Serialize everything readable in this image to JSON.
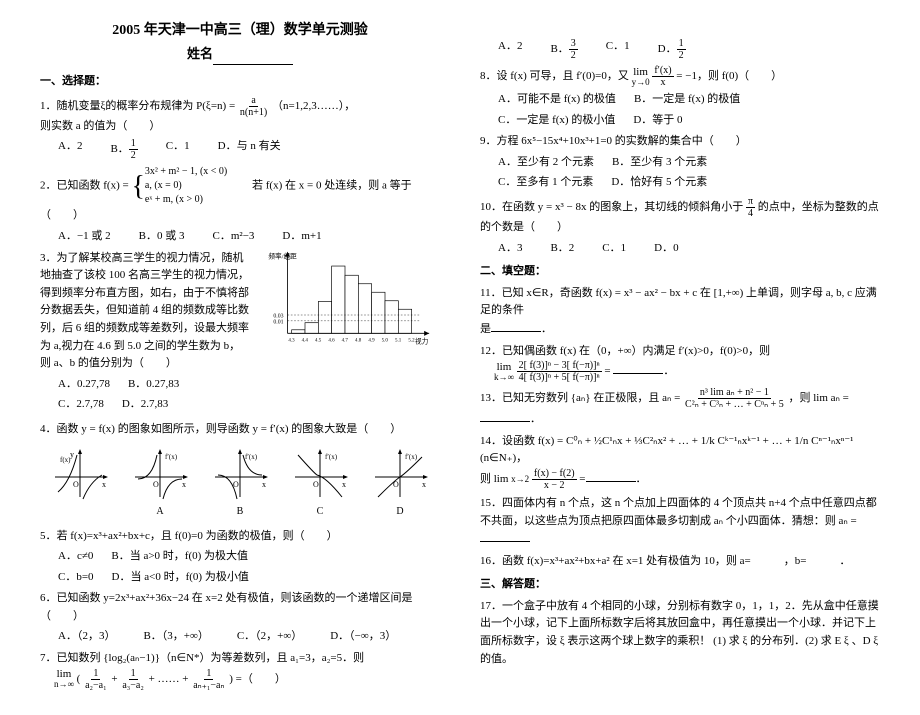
{
  "title": "2005 年天津一中高三（理）数学单元测验",
  "subtitle_prefix": "姓名",
  "section1": "一、选择题：",
  "section2": "二、填空题：",
  "section3": "三、解答题：",
  "q1": {
    "text": "1．随机变量ξ的概率分布规律为 P(ξ=n) = ",
    "formula_num": "a",
    "formula_den": "n(n+1)",
    "tail": "（n=1,2,3……），",
    "line2": "则实数 a 的值为（　　）",
    "opts": [
      "A．2",
      "B．",
      "C．1",
      "D．与 n 有关"
    ],
    "optB_num": "1",
    "optB_den": "2"
  },
  "q2": {
    "text": "2．已知函数 f(x) = ",
    "pw1": "3x² + m² − 1, (x < 0)",
    "pw2": "a, (x = 0)",
    "pw3": "eˣ + m, (x > 0)",
    "tail": "　　若 f(x) 在 x = 0 处连续，则 a 等于（　　）",
    "opts": [
      "A．−1 或 2",
      "B．0 或 3",
      "C．m²−3",
      "D．m+1"
    ]
  },
  "q3": {
    "text": "3．为了解某校高三学生的视力情况，随机地抽查了该校 100 名高三学生的视力情况，得到频率分布直方图，如右，由于不慎将部分数据丢失，但知道前 4 组的频数成等比数列，后 6 组的频数成等差数列，设最大频率为 a,视力在 4.6 到 5.0 之间的学生数为 b，则 a、b 的值分别为（　　）",
    "opts": [
      "A．0.27,78",
      "B．0.27,83",
      "C．2.7,78",
      "D．2.7,83"
    ],
    "chart": {
      "xlabels": [
        "4.3",
        "4.4",
        "4.5",
        "4.6",
        "4.7",
        "4.8",
        "4.9",
        "5.0",
        "5.1",
        "5.2"
      ],
      "ylabel": "频率/组距",
      "xlabel": "视力",
      "yticks": [
        "0.01",
        "0.03"
      ],
      "bars": [
        0.05,
        0.15,
        0.45,
        0.95,
        0.82,
        0.7,
        0.58,
        0.46,
        0.34
      ],
      "bar_color": "#ffffff",
      "border_color": "#000000",
      "dash_color": "#000000"
    }
  },
  "q4": {
    "text": "4．函数 y = f(x) 的图象如图所示，则导函数 y = f′(x) 的图象大致是（　　）",
    "labels": [
      "A",
      "B",
      "C",
      "D"
    ]
  },
  "q5": {
    "text": "5．若 f(x)=x³+ax²+bx+c，且 f(0)=0 为函数的极值，则（　　）",
    "opts": [
      "A．c≠0",
      "B．当 a>0 时，f(0) 为极大值",
      "C．b=0",
      "D．当 a<0 时，f(0) 为极小值"
    ]
  },
  "q6": {
    "text": "6．已知函数 y=2x³+ax²+36x−24 在 x=2 处有极值，则该函数的一个递增区间是（　　）",
    "opts": [
      "A．（2，3）",
      "B．（3，+∞）",
      "C．（2，+∞）",
      "D．（−∞，3）"
    ]
  },
  "q7": {
    "text": "7．已知数列 {log₂(aₙ−1)}（n∈N*）为等差数列，且 a₁=3，a₂=5．则",
    "lim_expr_num": "1",
    "lim_expr": "a₂−a₁　a₃−a₂　　　aₙ₊₁−aₙ",
    "opts": [
      "A．2",
      "B．",
      "C．1",
      "D．"
    ],
    "optB_num": "3",
    "optB_den": "2",
    "optD_num": "1",
    "optD_den": "2"
  },
  "q8": {
    "text": "8．设 f(x) 可导，且 f′(0)=0，又",
    "lim_num": "f′(x)",
    "lim_den": "x",
    "tail": " = −1，则 f(0)（　　）",
    "opts": [
      "A．可能不是 f(x) 的极值",
      "B．一定是 f(x) 的极值",
      "C．一定是 f(x) 的极小值",
      "D．等于 0"
    ]
  },
  "q9": {
    "text": "9．方程 6x⁵−15x⁴+10x³+1=0 的实数解的集合中（　　）",
    "opts": [
      "A．至少有 2 个元素",
      "B．至少有 3 个元素",
      "C．至多有 1 个元素",
      "D．恰好有 5 个元素"
    ]
  },
  "q10": {
    "text": "10．在函数 y = x³ − 8x 的图象上，其切线的倾斜角小于 ",
    "frac_num": "π",
    "frac_den": "4",
    "tail": " 的点中，坐标为整数的点",
    "line2": "的个数是（　　）",
    "opts": [
      "A．3",
      "B．2",
      "C．1",
      "D．0"
    ]
  },
  "q11": {
    "text": "11．已知 x∈R，奇函数 f(x) = x³ − ax² − bx + c 在 [1,+∞) 上单调，则字母 a, b, c 应满足的条件",
    "line2": "是"
  },
  "q12": {
    "text": "12．已知偶函数 f(x) 在（0，+∞）内满足 f′(x)>0，f(0)>0，则",
    "expr_num": "2[ f(3)]ⁿ − 3[ f(−π)]ⁿ",
    "expr_den": "4[ f(3)]ⁿ + 5[ f(−π)]ⁿ"
  },
  "q13": {
    "text": "13．已知无穷数列 {aₙ} 在正极限，且 aₙ = ",
    "num": "n³ lim aₙ + n² − 1",
    "den": "C²ₙ + C³ₙ + … + Cⁿₙ + 5",
    "tail": "，则 lim aₙ ="
  },
  "q14": {
    "text": "14．设函数 f(x) = C⁰ₙ + ½C¹ₙx + ⅓C²ₙx² + … + 1/k Cᵏ⁻¹ₙxᵏ⁻¹ + … + 1/n Cⁿ⁻¹ₙxⁿ⁻¹ (n∈N₊)，",
    "line2": "则 lim",
    "frac_num": "f(x) − f(2)",
    "frac_den": "x − 2",
    "tail": " ="
  },
  "q15": {
    "text": "15．四面体内有 n 个点，这 n 个点加上四面体的 4 个顶点共 n+4 个点中任意四点都不共面，以这些点为顶点把原四面体最多切割成 aₙ 个小四面体．猜想：则 aₙ ="
  },
  "q16": {
    "text": "16．函数 f(x)=x³+ax²+bx+a² 在 x=1 处有极值为 10，则 a=　　　，b=　　　．"
  },
  "q17": {
    "text": "17．一个盒子中放有 4 个相同的小球，分别标有数字 0，1，1，2．先从盒中任意摸出一个小球，记下上面所标数字后将其放回盒中，再任意摸出一个小球．并记下上面所标数字，设 ξ 表示这两个球上数字的乘积！ (1) 求 ξ 的分布列．(2) 求 E ξ 、D ξ 的值。"
  }
}
